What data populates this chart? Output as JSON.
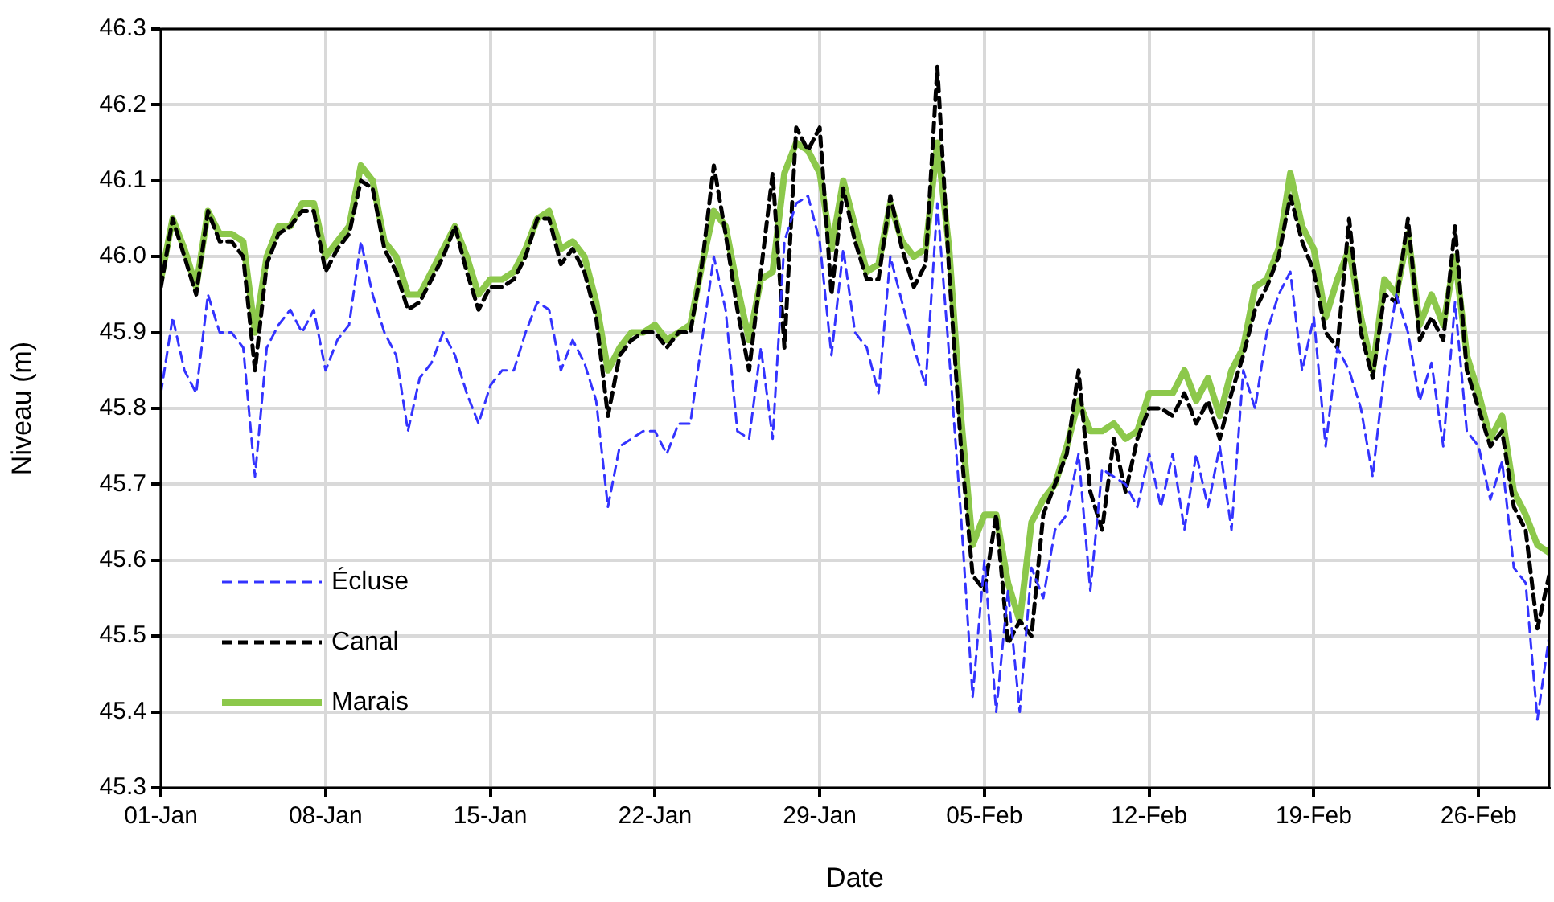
{
  "chart_data": {
    "type": "line",
    "xlabel": "Date",
    "ylabel": "Niveau (m)",
    "grid": true,
    "legend": "bottom left",
    "marker": "none",
    "xlim": [
      "--01-01",
      "--03-01"
    ],
    "xticks": [
      {
        "value": "--01-01",
        "label": "01-Jan"
      },
      {
        "value": "--01-08",
        "label": "08-Jan"
      },
      {
        "value": "--01-15",
        "label": "15-Jan"
      },
      {
        "value": "--01-22",
        "label": "22-Jan"
      },
      {
        "value": "--01-29",
        "label": "29-Jan"
      },
      {
        "value": "--02-05",
        "label": "05-Feb"
      },
      {
        "value": "--02-12",
        "label": "12-Feb"
      },
      {
        "value": "--02-19",
        "label": "19-Feb"
      },
      {
        "value": "--02-26",
        "label": "26-Feb"
      }
    ],
    "ylim": [
      45.3,
      46.3
    ],
    "yticks": [
      45.3,
      45.4,
      45.5,
      45.6,
      45.7,
      45.8,
      45.9,
      {
        "value": 46,
        "label": "46.0"
      },
      46.1,
      46.2,
      46.3
    ],
    "x": [
      "--01-01",
      "--01-01T12:00",
      "--01-02",
      "--01-02T12:00",
      "--01-03",
      "--01-03T12:00",
      "--01-04",
      "--01-04T12:00",
      "--01-05",
      "--01-05T12:00",
      "--01-06",
      "--01-06T12:00",
      "--01-07",
      "--01-07T12:00",
      "--01-08",
      "--01-08T12:00",
      "--01-09",
      "--01-09T12:00",
      "--01-10",
      "--01-10T12:00",
      "--01-11",
      "--01-11T12:00",
      "--01-12",
      "--01-12T12:00",
      "--01-13",
      "--01-13T12:00",
      "--01-14",
      "--01-14T12:00",
      "--01-15",
      "--01-15T12:00",
      "--01-16",
      "--01-16T12:00",
      "--01-17",
      "--01-17T12:00",
      "--01-18",
      "--01-18T12:00",
      "--01-19",
      "--01-19T12:00",
      "--01-20",
      "--01-20T12:00",
      "--01-21",
      "--01-21T12:00",
      "--01-22",
      "--01-22T12:00",
      "--01-23",
      "--01-23T12:00",
      "--01-24",
      "--01-24T12:00",
      "--01-25",
      "--01-25T12:00",
      "--01-26",
      "--01-26T12:00",
      "--01-27",
      "--01-27T12:00",
      "--01-28",
      "--01-28T12:00",
      "--01-29",
      "--01-29T12:00",
      "--01-30",
      "--01-30T12:00",
      "--01-31",
      "--01-31T12:00",
      "--02-01",
      "--02-01T12:00",
      "--02-02",
      "--02-02T12:00",
      "--02-03",
      "--02-03T12:00",
      "--02-04",
      "--02-04T12:00",
      "--02-05",
      "--02-05T12:00",
      "--02-06",
      "--02-06T12:00",
      "--02-07",
      "--02-07T12:00",
      "--02-08",
      "--02-08T12:00",
      "--02-09",
      "--02-09T12:00",
      "--02-10",
      "--02-10T12:00",
      "--02-11",
      "--02-11T12:00",
      "--02-12",
      "--02-12T12:00",
      "--02-13",
      "--02-13T12:00",
      "--02-14",
      "--02-14T12:00",
      "--02-15",
      "--02-15T12:00",
      "--02-16",
      "--02-16T12:00",
      "--02-17",
      "--02-17T12:00",
      "--02-18",
      "--02-18T12:00",
      "--02-19",
      "--02-19T12:00",
      "--02-20",
      "--02-20T12:00",
      "--02-21",
      "--02-21T12:00",
      "--02-22",
      "--02-22T12:00",
      "--02-23",
      "--02-23T12:00",
      "--02-24",
      "--02-24T12:00",
      "--02-25",
      "--02-25T12:00",
      "--02-26",
      "--02-26T12:00",
      "--02-27",
      "--02-27T12:00",
      "--02-28",
      "--02-28T12:00",
      "--03-01"
    ],
    "series": [
      {
        "name": "Écluse",
        "color": "#3333ff",
        "line_style": "dashed",
        "values": [
          45.82,
          45.92,
          45.85,
          45.82,
          45.95,
          45.9,
          45.9,
          45.88,
          45.71,
          45.88,
          45.91,
          45.93,
          45.9,
          45.93,
          45.85,
          45.89,
          45.91,
          46.02,
          45.95,
          45.9,
          45.87,
          45.77,
          45.84,
          45.86,
          45.9,
          45.87,
          45.82,
          45.78,
          45.83,
          45.85,
          45.85,
          45.9,
          45.94,
          45.93,
          45.85,
          45.89,
          45.86,
          45.81,
          45.67,
          45.75,
          45.76,
          45.77,
          45.77,
          45.74,
          45.78,
          45.78,
          45.89,
          46.0,
          45.93,
          45.77,
          45.76,
          45.88,
          45.76,
          46.02,
          46.07,
          46.08,
          46.02,
          45.87,
          46.01,
          45.9,
          45.88,
          45.82,
          46.0,
          45.94,
          45.88,
          45.83,
          46.07,
          45.87,
          45.66,
          45.42,
          45.6,
          45.4,
          45.56,
          45.4,
          45.59,
          45.55,
          45.64,
          45.66,
          45.74,
          45.56,
          45.72,
          45.71,
          45.7,
          45.67,
          45.74,
          45.67,
          45.74,
          45.64,
          45.74,
          45.67,
          45.75,
          45.64,
          45.85,
          45.8,
          45.9,
          45.95,
          45.98,
          45.85,
          45.92,
          45.75,
          45.88,
          45.85,
          45.8,
          45.71,
          45.85,
          45.95,
          45.9,
          45.81,
          45.86,
          45.75,
          45.94,
          45.77,
          45.75,
          45.68,
          45.73,
          45.59,
          45.57,
          45.39,
          45.5
        ]
      },
      {
        "name": "Canal",
        "color": "#000000",
        "line_style": "dashed",
        "values": [
          45.96,
          46.05,
          46.0,
          45.95,
          46.06,
          46.02,
          46.02,
          46.0,
          45.85,
          45.99,
          46.03,
          46.04,
          46.06,
          46.06,
          45.98,
          46.01,
          46.03,
          46.1,
          46.09,
          46.01,
          45.98,
          45.93,
          45.94,
          45.97,
          46.0,
          46.04,
          45.98,
          45.93,
          45.96,
          45.96,
          45.97,
          46.0,
          46.05,
          46.05,
          45.99,
          46.01,
          45.98,
          45.92,
          45.79,
          45.87,
          45.89,
          45.9,
          45.9,
          45.88,
          45.9,
          45.9,
          45.99,
          46.12,
          46.03,
          45.93,
          45.85,
          45.98,
          46.11,
          45.88,
          46.17,
          46.14,
          46.17,
          45.95,
          46.09,
          46.02,
          45.97,
          45.97,
          46.08,
          46.01,
          45.96,
          45.99,
          46.25,
          45.98,
          45.75,
          45.58,
          45.56,
          45.66,
          45.49,
          45.52,
          45.5,
          45.66,
          45.7,
          45.74,
          45.85,
          45.69,
          45.64,
          45.76,
          45.69,
          45.76,
          45.8,
          45.8,
          45.79,
          45.82,
          45.78,
          45.81,
          45.76,
          45.82,
          45.87,
          45.93,
          45.96,
          46.0,
          46.08,
          46.02,
          45.98,
          45.9,
          45.88,
          46.05,
          45.9,
          45.84,
          45.95,
          45.94,
          46.05,
          45.89,
          45.92,
          45.89,
          46.04,
          45.85,
          45.8,
          45.75,
          45.77,
          45.67,
          45.64,
          45.51,
          45.58
        ]
      },
      {
        "name": "Marais",
        "color": "#8cc84b",
        "line_style": "solid",
        "values": [
          45.97,
          46.05,
          46.01,
          45.96,
          46.06,
          46.03,
          46.03,
          46.02,
          45.9,
          46.0,
          46.04,
          46.04,
          46.07,
          46.07,
          46.0,
          46.02,
          46.04,
          46.12,
          46.1,
          46.02,
          46.0,
          45.95,
          45.95,
          45.98,
          46.01,
          46.04,
          46.0,
          45.95,
          45.97,
          45.97,
          45.98,
          46.01,
          46.05,
          46.06,
          46.01,
          46.02,
          46.0,
          45.94,
          45.85,
          45.88,
          45.9,
          45.9,
          45.91,
          45.89,
          45.9,
          45.91,
          45.99,
          46.06,
          46.04,
          45.96,
          45.89,
          45.97,
          45.98,
          46.11,
          46.15,
          46.14,
          46.11,
          46.01,
          46.1,
          46.04,
          45.98,
          45.99,
          46.07,
          46.02,
          46.0,
          46.01,
          46.15,
          46.01,
          45.79,
          45.62,
          45.66,
          45.66,
          45.57,
          45.52,
          45.65,
          45.68,
          45.7,
          45.75,
          45.81,
          45.77,
          45.77,
          45.78,
          45.76,
          45.77,
          45.82,
          45.82,
          45.82,
          45.85,
          45.81,
          45.84,
          45.79,
          45.85,
          45.88,
          45.96,
          45.97,
          46.01,
          46.11,
          46.04,
          46.01,
          45.92,
          45.97,
          46.01,
          45.92,
          45.85,
          45.97,
          45.95,
          46.03,
          45.91,
          45.95,
          45.91,
          46.0,
          45.87,
          45.82,
          45.76,
          45.79,
          45.69,
          45.66,
          45.62,
          45.61
        ]
      }
    ]
  }
}
